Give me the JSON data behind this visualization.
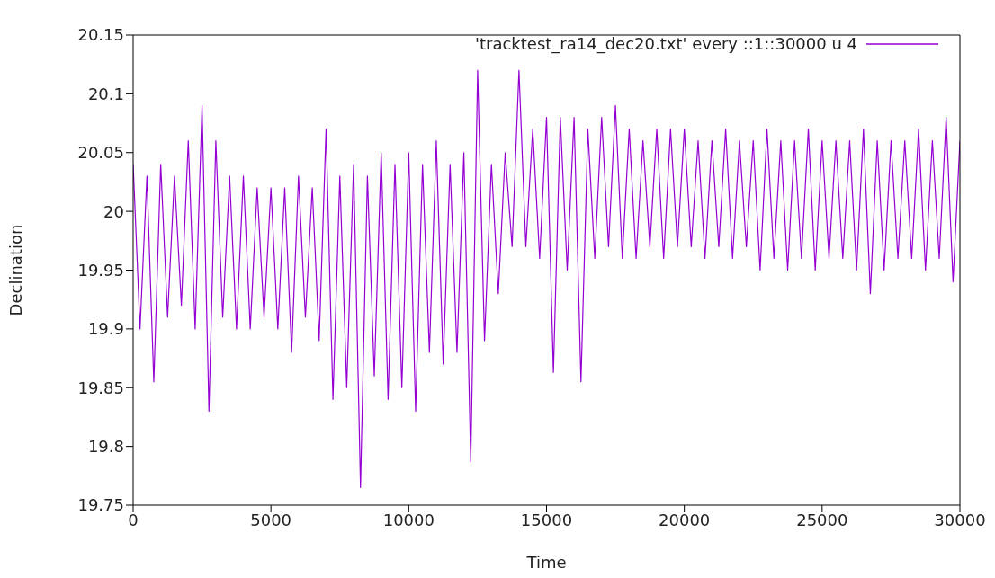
{
  "chart_data": {
    "type": "line",
    "xlabel": "Time",
    "ylabel": "Declination",
    "xlim": [
      0,
      30000
    ],
    "xticks": [
      0,
      5000,
      10000,
      15000,
      20000,
      25000,
      30000
    ],
    "ylim": [
      19.75,
      20.15
    ],
    "yticks": [
      19.75,
      19.8,
      19.85,
      19.9,
      19.95,
      20,
      20.05,
      20.1,
      20.15
    ],
    "legend": "top right",
    "marker": "none",
    "line_style": "solid",
    "x": [
      0,
      250,
      500,
      750,
      1000,
      1250,
      1500,
      1750,
      2000,
      2250,
      2500,
      2750,
      3000,
      3250,
      3500,
      3750,
      4000,
      4250,
      4500,
      4750,
      5000,
      5250,
      5500,
      5750,
      6000,
      6250,
      6500,
      6750,
      7000,
      7250,
      7500,
      7750,
      8000,
      8250,
      8500,
      8750,
      9000,
      9250,
      9500,
      9750,
      10000,
      10250,
      10500,
      10750,
      11000,
      11250,
      11500,
      11750,
      12000,
      12250,
      12500,
      12750,
      13000,
      13250,
      13500,
      13750,
      14000,
      14250,
      14500,
      14750,
      15000,
      15250,
      15500,
      15750,
      16000,
      16250,
      16500,
      16750,
      17000,
      17250,
      17500,
      17750,
      18000,
      18250,
      18500,
      18750,
      19000,
      19250,
      19500,
      19750,
      20000,
      20250,
      20500,
      20750,
      21000,
      21250,
      21500,
      21750,
      22000,
      22250,
      22500,
      22750,
      23000,
      23250,
      23500,
      23750,
      24000,
      24250,
      24500,
      24750,
      25000,
      25250,
      25500,
      25750,
      26000,
      26250,
      26500,
      26750,
      27000,
      27250,
      27500,
      27750,
      28000,
      28250,
      28500,
      28750,
      29000,
      29250,
      29500,
      29750,
      30000
    ],
    "series": [
      {
        "name": "'tracktest_ra14_dec20.txt' every ::1::30000 u 4",
        "color": "#9400d3",
        "values": [
          20.04,
          19.9,
          20.03,
          19.855,
          20.04,
          19.91,
          20.03,
          19.92,
          20.06,
          19.9,
          20.09,
          19.83,
          20.06,
          19.91,
          20.03,
          19.9,
          20.03,
          19.9,
          20.02,
          19.91,
          20.02,
          19.9,
          20.02,
          19.88,
          20.03,
          19.91,
          20.02,
          19.89,
          20.07,
          19.84,
          20.03,
          19.85,
          20.04,
          19.765,
          20.03,
          19.86,
          20.05,
          19.84,
          20.04,
          19.85,
          20.05,
          19.83,
          20.04,
          19.88,
          20.06,
          19.87,
          20.04,
          19.88,
          20.05,
          19.787,
          20.12,
          19.89,
          20.04,
          19.93,
          20.05,
          19.97,
          20.12,
          19.97,
          20.07,
          19.96,
          20.08,
          19.863,
          20.08,
          19.95,
          20.08,
          19.855,
          20.07,
          19.96,
          20.08,
          19.97,
          20.09,
          19.96,
          20.07,
          19.96,
          20.06,
          19.97,
          20.07,
          19.96,
          20.07,
          19.97,
          20.07,
          19.97,
          20.06,
          19.96,
          20.06,
          19.97,
          20.07,
          19.96,
          20.06,
          19.97,
          20.06,
          19.95,
          20.07,
          19.96,
          20.06,
          19.95,
          20.06,
          19.96,
          20.07,
          19.95,
          20.06,
          19.96,
          20.06,
          19.96,
          20.06,
          19.95,
          20.07,
          19.93,
          20.06,
          19.95,
          20.06,
          19.96,
          20.06,
          19.96,
          20.07,
          19.95,
          20.06,
          19.96,
          20.08,
          19.94,
          20.06
        ]
      }
    ]
  }
}
